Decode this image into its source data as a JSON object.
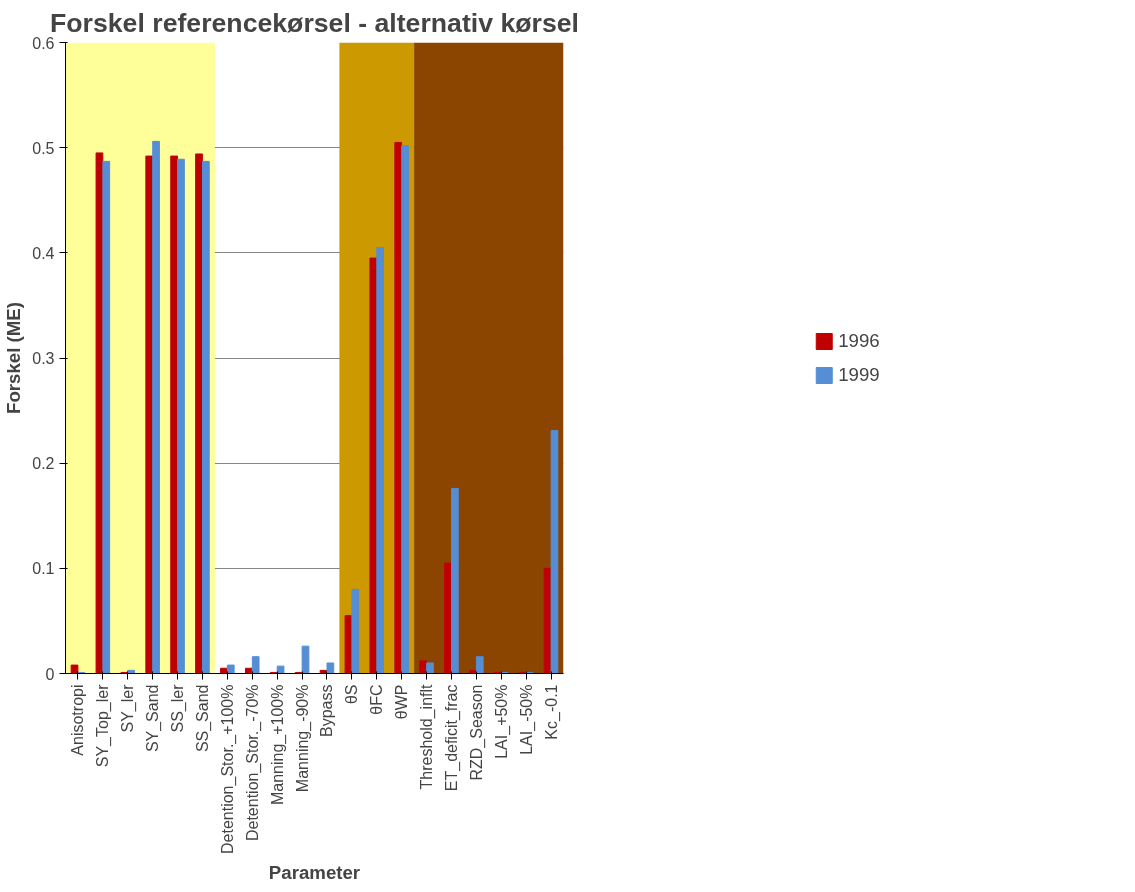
{
  "chart_data": {
    "type": "bar",
    "title": "Forskel referencekørsel - alternativ kørsel",
    "xlabel": "Parameter",
    "ylabel": "Forskel (ME)",
    "categories": [
      "Anisotropi",
      "SY_Top_ler",
      "SY_ler",
      "SY_Sand",
      "SS_ler",
      "SS_Sand",
      "Detention_Stor._+100%",
      "Detention_Stor._-70%",
      "Manning_+100%",
      "Manning_-90%",
      "Bypass",
      "θS",
      "θFC",
      "θWP",
      "Threshold_inflt",
      "ET_deficit_frac",
      "RZD_Season",
      "LAI_+50%",
      "LAI_-50%",
      "Kc_-0.1"
    ],
    "series": [
      {
        "name": "1996",
        "color": "#c00000",
        "values": [
          0.008,
          0.495,
          0.001,
          0.492,
          0.492,
          0.494,
          0.005,
          0.005,
          0.001,
          0.001,
          0.003,
          0.055,
          0.395,
          0.505,
          0.012,
          0.105,
          0.003,
          0.001,
          0.001,
          0.1
        ]
      },
      {
        "name": "1999",
        "color": "#558ed5",
        "values": [
          0.001,
          0.487,
          0.003,
          0.506,
          0.489,
          0.487,
          0.008,
          0.016,
          0.007,
          0.026,
          0.01,
          0.08,
          0.405,
          0.502,
          0.01,
          0.176,
          0.016,
          0.001,
          0.001,
          0.231
        ]
      }
    ],
    "bands": [
      {
        "axis": "x",
        "from": "Anisotropi",
        "to": "SS_Sand",
        "color": "#ffff99"
      },
      {
        "axis": "x",
        "from": "θS",
        "to": "θWP",
        "color": "#cc9900"
      },
      {
        "axis": "x",
        "from": "Threshold_inflt",
        "to": "Kc_-0.1",
        "color": "#8b4500"
      }
    ],
    "ylim": [
      0,
      0.6
    ],
    "yticks": [
      0,
      0.1,
      0.2,
      0.3,
      0.4,
      0.5,
      0.6
    ],
    "grid": "y",
    "legend": "right"
  }
}
